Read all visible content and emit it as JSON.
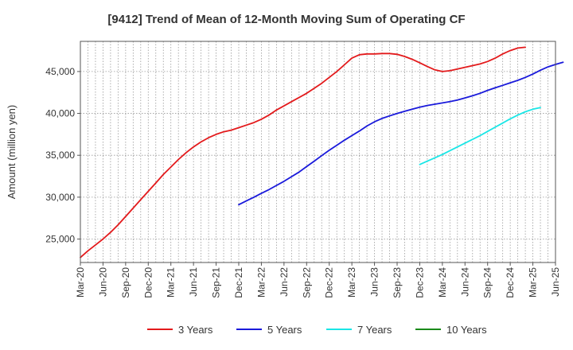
{
  "chart_data": {
    "type": "line",
    "title": "[9412]  Trend of Mean of 12-Month Moving Sum of Operating CF",
    "xlabel": "",
    "ylabel": "Amount (million yen)",
    "x_tick_labels": [
      "Mar-20",
      "Jun-20",
      "Sep-20",
      "Dec-20",
      "Mar-21",
      "Jun-21",
      "Sep-21",
      "Dec-21",
      "Mar-22",
      "Jun-22",
      "Sep-22",
      "Dec-22",
      "Mar-23",
      "Jun-23",
      "Sep-23",
      "Dec-23",
      "Mar-24",
      "Jun-24",
      "Sep-24",
      "Dec-24",
      "Mar-25",
      "Jun-25"
    ],
    "y_ticks": [
      25000,
      30000,
      35000,
      40000,
      45000
    ],
    "y_tick_labels": [
      "25,000",
      "30,000",
      "35,000",
      "40,000",
      "45,000"
    ],
    "ylim": [
      22200,
      48600
    ],
    "grid": true,
    "legend_position": "bottom",
    "series": [
      {
        "name": "3 Years",
        "color": "#e31a1c",
        "start_month_index": 0,
        "values": [
          22800,
          23600,
          24300,
          25000,
          25800,
          26700,
          27700,
          28700,
          29700,
          30700,
          31700,
          32700,
          33600,
          34500,
          35300,
          36000,
          36600,
          37100,
          37500,
          37800,
          38000,
          38300,
          38600,
          38900,
          39300,
          39800,
          40400,
          40900,
          41400,
          41900,
          42400,
          43000,
          43600,
          44300,
          45000,
          45800,
          46600,
          47000,
          47100,
          47100,
          47150,
          47150,
          47050,
          46800,
          46450,
          46050,
          45600,
          45200,
          45000,
          45100,
          45300,
          45500,
          45700,
          45900,
          46200,
          46600,
          47100,
          47500,
          47800,
          47900
        ]
      },
      {
        "name": "5 Years",
        "color": "#1a1adb",
        "start_month_index": 21,
        "values": [
          29100,
          29550,
          30000,
          30450,
          30900,
          31400,
          31900,
          32450,
          33000,
          33650,
          34300,
          34950,
          35600,
          36200,
          36800,
          37350,
          37900,
          38500,
          39000,
          39400,
          39700,
          40000,
          40250,
          40500,
          40750,
          40950,
          41100,
          41250,
          41400,
          41600,
          41850,
          42100,
          42400,
          42750,
          43050,
          43350,
          43650,
          43950,
          44300,
          44700,
          45150,
          45550,
          45850,
          46100
        ]
      },
      {
        "name": "7 Years",
        "color": "#1ae6e6",
        "start_month_index": 45,
        "values": [
          33900,
          34300,
          34700,
          35100,
          35550,
          36000,
          36450,
          36900,
          37350,
          37850,
          38350,
          38850,
          39350,
          39800,
          40200,
          40500,
          40700
        ]
      },
      {
        "name": "10 Years",
        "color": "#1a8a1a",
        "start_month_index": 0,
        "values": []
      }
    ]
  }
}
